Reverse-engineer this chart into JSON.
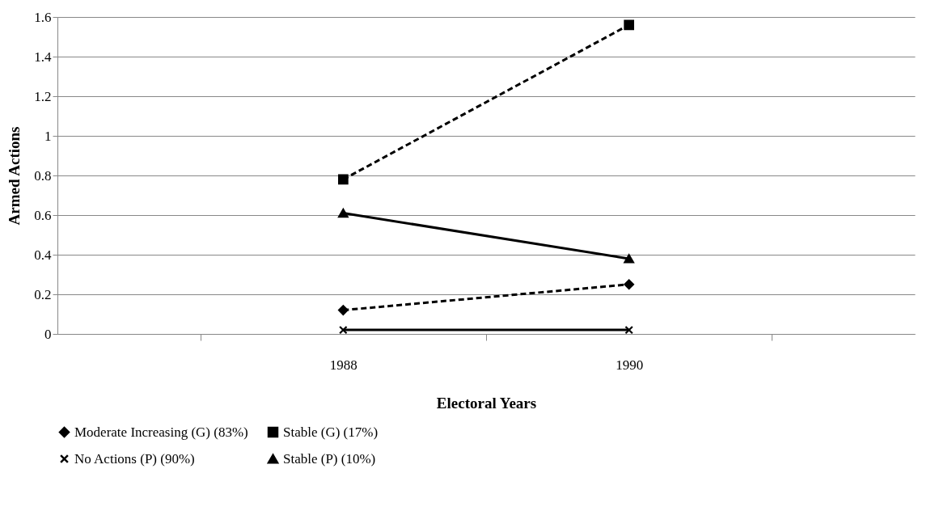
{
  "chart_data": {
    "type": "line",
    "xlabel": "Electoral Years",
    "ylabel": "Armed Actions",
    "categories": [
      "1988",
      "1990"
    ],
    "series": [
      {
        "name": "Moderate Increasing (G) (83%)",
        "color": "#000000",
        "marker": "diamond",
        "line_style": "dashed",
        "values": [
          0.12,
          0.25
        ]
      },
      {
        "name": "Stable (G) (17%)",
        "color": "#000000",
        "marker": "square",
        "line_style": "dashed",
        "values": [
          0.78,
          1.56
        ]
      },
      {
        "name": "No Actions (P) (90%)",
        "color": "#000000",
        "marker": "cross",
        "line_style": "solid",
        "values": [
          0.02,
          0.02
        ]
      },
      {
        "name": "Stable (P) (10%)",
        "color": "#000000",
        "marker": "triangle",
        "line_style": "solid",
        "values": [
          0.61,
          0.38
        ]
      }
    ],
    "ylim": [
      0,
      1.6
    ],
    "yticks": [
      0,
      0.2,
      0.4,
      0.6,
      0.8,
      1,
      1.2,
      1.4,
      1.6
    ],
    "grid": "y",
    "legend": "bottom"
  }
}
